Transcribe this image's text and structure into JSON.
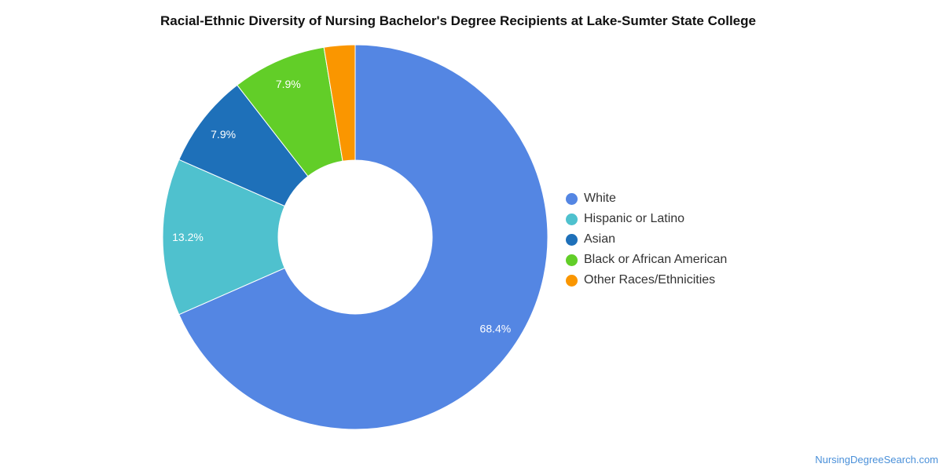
{
  "chart_data": {
    "type": "pie",
    "title": "Racial-Ethnic Diversity of Nursing Bachelor's Degree Recipients at Lake-Sumter State College",
    "donut": true,
    "legend_position": "right",
    "unit": "%",
    "slices": [
      {
        "name": "White",
        "value": 68.4,
        "label": "68.4%",
        "color": "#5486e3"
      },
      {
        "name": "Hispanic or Latino",
        "value": 13.2,
        "label": "13.2%",
        "color": "#4fc1ce"
      },
      {
        "name": "Asian",
        "value": 7.9,
        "label": "7.9%",
        "color": "#1e70b9"
      },
      {
        "name": "Black or African American",
        "value": 7.9,
        "label": "7.9%",
        "color": "#62ce28"
      },
      {
        "name": "Other Races/Ethnicities",
        "value": 2.6,
        "label": "",
        "color": "#fa9600"
      }
    ]
  },
  "source": "NursingDegreeSearch.com"
}
